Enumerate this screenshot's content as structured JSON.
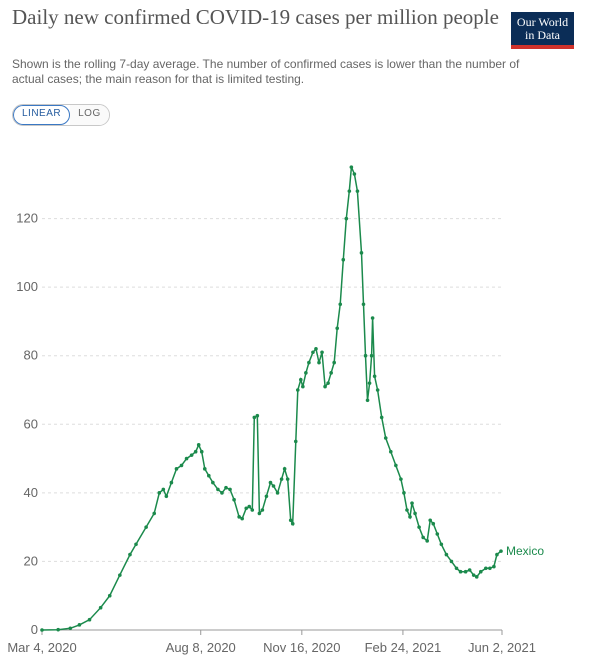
{
  "header": {
    "title": "Daily new confirmed COVID-19 cases per million people",
    "subtitle": "Shown is the rolling 7-day average. The number of confirmed cases is lower than the number of actual cases; the main reason for that is limited testing.",
    "logo_line1": "Our World",
    "logo_line2": "in Data"
  },
  "controls": {
    "linear_label": "LINEAR",
    "log_label": "LOG",
    "active": "linear"
  },
  "colors": {
    "series": "#1b8a4c",
    "grid": "#dddddd",
    "axis_text": "#666666",
    "logo_bg": "#0b2d57",
    "logo_accent": "#d0322b"
  },
  "chart_data": {
    "type": "line",
    "title": "Daily new confirmed COVID-19 cases per million people",
    "x_ticks": [
      "Mar 4, 2020",
      "Aug 8, 2020",
      "Nov 16, 2020",
      "Feb 24, 2021",
      "Jun 2, 2021"
    ],
    "y_ticks": [
      0,
      20,
      40,
      60,
      80,
      100,
      120
    ],
    "xlim": [
      "2020-03-04",
      "2021-06-02"
    ],
    "ylim": [
      0,
      140
    ],
    "grid": true,
    "series": [
      {
        "name": "Mexico",
        "color": "#1b8a4c",
        "points": [
          [
            "2020-03-04",
            0
          ],
          [
            "2020-03-20",
            0.1
          ],
          [
            "2020-04-01",
            0.5
          ],
          [
            "2020-04-10",
            1.5
          ],
          [
            "2020-04-20",
            3
          ],
          [
            "2020-05-01",
            6.5
          ],
          [
            "2020-05-10",
            10
          ],
          [
            "2020-05-20",
            16
          ],
          [
            "2020-05-30",
            22
          ],
          [
            "2020-06-05",
            25
          ],
          [
            "2020-06-15",
            30
          ],
          [
            "2020-06-23",
            34
          ],
          [
            "2020-06-28",
            40
          ],
          [
            "2020-07-02",
            41
          ],
          [
            "2020-07-05",
            39
          ],
          [
            "2020-07-10",
            43
          ],
          [
            "2020-07-15",
            47
          ],
          [
            "2020-07-20",
            48
          ],
          [
            "2020-07-25",
            50
          ],
          [
            "2020-07-30",
            51
          ],
          [
            "2020-08-03",
            52
          ],
          [
            "2020-08-06",
            54
          ],
          [
            "2020-08-09",
            52
          ],
          [
            "2020-08-12",
            47
          ],
          [
            "2020-08-16",
            45
          ],
          [
            "2020-08-20",
            43
          ],
          [
            "2020-08-25",
            41
          ],
          [
            "2020-08-29",
            40
          ],
          [
            "2020-09-02",
            41.5
          ],
          [
            "2020-09-06",
            41
          ],
          [
            "2020-09-10",
            38
          ],
          [
            "2020-09-15",
            33
          ],
          [
            "2020-09-18",
            32.5
          ],
          [
            "2020-09-22",
            35.5
          ],
          [
            "2020-09-25",
            36
          ],
          [
            "2020-09-28",
            35
          ],
          [
            "2020-09-30",
            62
          ],
          [
            "2020-10-03",
            62.5
          ],
          [
            "2020-10-05",
            34
          ],
          [
            "2020-10-08",
            35
          ],
          [
            "2020-10-12",
            39
          ],
          [
            "2020-10-16",
            43
          ],
          [
            "2020-10-19",
            42
          ],
          [
            "2020-10-23",
            40
          ],
          [
            "2020-10-27",
            44
          ],
          [
            "2020-10-30",
            47
          ],
          [
            "2020-11-02",
            44
          ],
          [
            "2020-11-05",
            32
          ],
          [
            "2020-11-07",
            31
          ],
          [
            "2020-11-10",
            55
          ],
          [
            "2020-11-12",
            70
          ],
          [
            "2020-11-15",
            73
          ],
          [
            "2020-11-17",
            71
          ],
          [
            "2020-11-20",
            75
          ],
          [
            "2020-11-23",
            78
          ],
          [
            "2020-11-27",
            81
          ],
          [
            "2020-11-30",
            82
          ],
          [
            "2020-12-03",
            78
          ],
          [
            "2020-12-06",
            81
          ],
          [
            "2020-12-09",
            71
          ],
          [
            "2020-12-12",
            72
          ],
          [
            "2020-12-15",
            75
          ],
          [
            "2020-12-18",
            78
          ],
          [
            "2020-12-21",
            88
          ],
          [
            "2020-12-24",
            95
          ],
          [
            "2020-12-27",
            108
          ],
          [
            "2020-12-30",
            120
          ],
          [
            "2021-01-02",
            128
          ],
          [
            "2021-01-04",
            135
          ],
          [
            "2021-01-07",
            133
          ],
          [
            "2021-01-10",
            128
          ],
          [
            "2021-01-14",
            110
          ],
          [
            "2021-01-16",
            95
          ],
          [
            "2021-01-18",
            80
          ],
          [
            "2021-01-20",
            67
          ],
          [
            "2021-01-22",
            72
          ],
          [
            "2021-01-24",
            80
          ],
          [
            "2021-01-25",
            91
          ],
          [
            "2021-01-27",
            74
          ],
          [
            "2021-01-30",
            70
          ],
          [
            "2021-02-03",
            62
          ],
          [
            "2021-02-07",
            56
          ],
          [
            "2021-02-12",
            52
          ],
          [
            "2021-02-17",
            48
          ],
          [
            "2021-02-22",
            44
          ],
          [
            "2021-02-25",
            40
          ],
          [
            "2021-02-28",
            35
          ],
          [
            "2021-03-03",
            33
          ],
          [
            "2021-03-05",
            37
          ],
          [
            "2021-03-08",
            34
          ],
          [
            "2021-03-12",
            30
          ],
          [
            "2021-03-16",
            27
          ],
          [
            "2021-03-20",
            26
          ],
          [
            "2021-03-23",
            32
          ],
          [
            "2021-03-26",
            31
          ],
          [
            "2021-03-30",
            28
          ],
          [
            "2021-04-03",
            25
          ],
          [
            "2021-04-08",
            22
          ],
          [
            "2021-04-13",
            20
          ],
          [
            "2021-04-18",
            18
          ],
          [
            "2021-04-22",
            17
          ],
          [
            "2021-04-27",
            17
          ],
          [
            "2021-05-01",
            17.5
          ],
          [
            "2021-05-05",
            16
          ],
          [
            "2021-05-08",
            15.5
          ],
          [
            "2021-05-12",
            17
          ],
          [
            "2021-05-17",
            18
          ],
          [
            "2021-05-21",
            18
          ],
          [
            "2021-05-25",
            18.5
          ],
          [
            "2021-05-28",
            22
          ],
          [
            "2021-06-01",
            23
          ]
        ]
      }
    ]
  }
}
